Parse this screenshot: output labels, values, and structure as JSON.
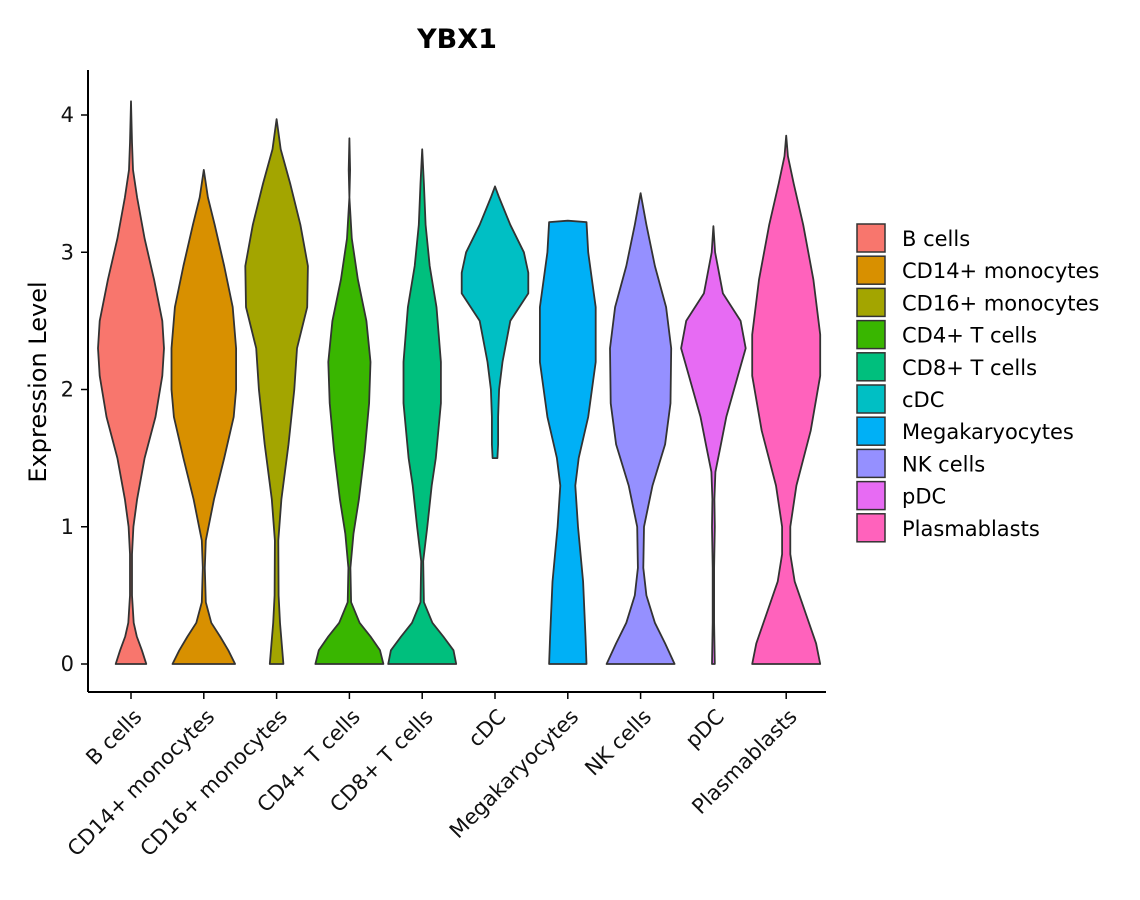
{
  "chart_data": {
    "type": "violin",
    "title": "YBX1",
    "xlabel": "",
    "ylabel": "Expression Level",
    "ylim": [
      0,
      4.35
    ],
    "yticks": [
      0,
      1,
      2,
      3,
      4
    ],
    "legend_position": "right",
    "categories": [
      "B cells",
      "CD14+ monocytes",
      "CD16+ monocytes",
      "CD4+ T cells",
      "CD8+ T cells",
      "cDC",
      "Megakaryocytes",
      "NK cells",
      "pDC",
      "Plasmablasts"
    ],
    "colors": [
      "#F8766D",
      "#D89000",
      "#A3A500",
      "#39B600",
      "#00BF7D",
      "#00BFC4",
      "#00B0F6",
      "#9590FF",
      "#E76BF3",
      "#FF62BC"
    ],
    "density": [
      [
        [
          0,
          0.45
        ],
        [
          0.1,
          0.32
        ],
        [
          0.2,
          0.17
        ],
        [
          0.3,
          0.08
        ],
        [
          0.5,
          0.03
        ],
        [
          0.8,
          0.03
        ],
        [
          1.0,
          0.07
        ],
        [
          1.2,
          0.18
        ],
        [
          1.5,
          0.4
        ],
        [
          1.8,
          0.72
        ],
        [
          2.1,
          0.92
        ],
        [
          2.3,
          0.97
        ],
        [
          2.5,
          0.92
        ],
        [
          2.8,
          0.68
        ],
        [
          3.1,
          0.4
        ],
        [
          3.4,
          0.18
        ],
        [
          3.6,
          0.06
        ],
        [
          3.8,
          0.03
        ],
        [
          4.1,
          0.0
        ]
      ],
      [
        [
          0,
          0.92
        ],
        [
          0.1,
          0.72
        ],
        [
          0.2,
          0.48
        ],
        [
          0.3,
          0.22
        ],
        [
          0.45,
          0.06
        ],
        [
          0.7,
          0.03
        ],
        [
          0.9,
          0.06
        ],
        [
          1.2,
          0.3
        ],
        [
          1.5,
          0.6
        ],
        [
          1.8,
          0.88
        ],
        [
          2.0,
          0.95
        ],
        [
          2.3,
          0.95
        ],
        [
          2.6,
          0.85
        ],
        [
          2.9,
          0.6
        ],
        [
          3.2,
          0.32
        ],
        [
          3.4,
          0.12
        ],
        [
          3.6,
          0.0
        ]
      ],
      [
        [
          0,
          0.2
        ],
        [
          0.3,
          0.1
        ],
        [
          0.5,
          0.06
        ],
        [
          0.9,
          0.05
        ],
        [
          1.2,
          0.14
        ],
        [
          1.6,
          0.35
        ],
        [
          2.0,
          0.52
        ],
        [
          2.3,
          0.6
        ],
        [
          2.6,
          0.9
        ],
        [
          2.9,
          0.92
        ],
        [
          3.2,
          0.7
        ],
        [
          3.5,
          0.4
        ],
        [
          3.75,
          0.12
        ],
        [
          3.97,
          0.0
        ]
      ],
      [
        [
          0,
          1.0
        ],
        [
          0.1,
          0.9
        ],
        [
          0.2,
          0.62
        ],
        [
          0.3,
          0.3
        ],
        [
          0.45,
          0.05
        ],
        [
          0.7,
          0.03
        ],
        [
          0.95,
          0.12
        ],
        [
          1.2,
          0.28
        ],
        [
          1.55,
          0.45
        ],
        [
          1.9,
          0.58
        ],
        [
          2.2,
          0.62
        ],
        [
          2.5,
          0.5
        ],
        [
          2.8,
          0.25
        ],
        [
          3.1,
          0.07
        ],
        [
          3.4,
          0.0
        ],
        [
          3.6,
          0.02
        ],
        [
          3.83,
          0.0
        ]
      ],
      [
        [
          0,
          1.0
        ],
        [
          0.1,
          0.92
        ],
        [
          0.2,
          0.62
        ],
        [
          0.3,
          0.3
        ],
        [
          0.45,
          0.05
        ],
        [
          0.75,
          0.03
        ],
        [
          1.0,
          0.15
        ],
        [
          1.3,
          0.28
        ],
        [
          1.5,
          0.4
        ],
        [
          1.9,
          0.55
        ],
        [
          2.2,
          0.55
        ],
        [
          2.6,
          0.42
        ],
        [
          2.9,
          0.22
        ],
        [
          3.2,
          0.1
        ],
        [
          3.5,
          0.05
        ],
        [
          3.75,
          0.0
        ]
      ],
      [
        [
          1.5,
          0.07
        ],
        [
          1.6,
          0.09
        ],
        [
          1.8,
          0.09
        ],
        [
          2.0,
          0.12
        ],
        [
          2.2,
          0.22
        ],
        [
          2.5,
          0.45
        ],
        [
          2.7,
          0.98
        ],
        [
          2.85,
          0.98
        ],
        [
          3.0,
          0.85
        ],
        [
          3.2,
          0.45
        ],
        [
          3.4,
          0.12
        ],
        [
          3.48,
          0.0
        ]
      ],
      [
        [
          0,
          0.55
        ],
        [
          0.2,
          0.52
        ],
        [
          0.6,
          0.45
        ],
        [
          1.0,
          0.3
        ],
        [
          1.3,
          0.22
        ],
        [
          1.5,
          0.32
        ],
        [
          1.8,
          0.6
        ],
        [
          2.2,
          0.82
        ],
        [
          2.6,
          0.82
        ],
        [
          3.0,
          0.6
        ],
        [
          3.22,
          0.55
        ],
        [
          3.23,
          0.0
        ]
      ],
      [
        [
          0,
          1.0
        ],
        [
          0.15,
          0.72
        ],
        [
          0.3,
          0.42
        ],
        [
          0.5,
          0.17
        ],
        [
          0.7,
          0.08
        ],
        [
          1.0,
          0.1
        ],
        [
          1.3,
          0.35
        ],
        [
          1.6,
          0.72
        ],
        [
          1.9,
          0.88
        ],
        [
          2.3,
          0.9
        ],
        [
          2.6,
          0.75
        ],
        [
          2.9,
          0.42
        ],
        [
          3.2,
          0.17
        ],
        [
          3.43,
          0.0
        ]
      ],
      [
        [
          0,
          0.04
        ],
        [
          0.3,
          0.02
        ],
        [
          0.7,
          0.02
        ],
        [
          1.0,
          0.04
        ],
        [
          1.2,
          0.03
        ],
        [
          1.4,
          0.06
        ],
        [
          1.6,
          0.22
        ],
        [
          1.8,
          0.38
        ],
        [
          2.1,
          0.72
        ],
        [
          2.3,
          0.95
        ],
        [
          2.5,
          0.8
        ],
        [
          2.7,
          0.28
        ],
        [
          3.0,
          0.05
        ],
        [
          3.19,
          0.0
        ]
      ],
      [
        [
          0,
          1.0
        ],
        [
          0.15,
          0.88
        ],
        [
          0.35,
          0.6
        ],
        [
          0.6,
          0.25
        ],
        [
          0.8,
          0.12
        ],
        [
          1.0,
          0.12
        ],
        [
          1.3,
          0.3
        ],
        [
          1.7,
          0.72
        ],
        [
          2.1,
          1.0
        ],
        [
          2.4,
          1.0
        ],
        [
          2.8,
          0.8
        ],
        [
          3.2,
          0.5
        ],
        [
          3.5,
          0.22
        ],
        [
          3.7,
          0.05
        ],
        [
          3.85,
          0.0
        ]
      ]
    ]
  }
}
